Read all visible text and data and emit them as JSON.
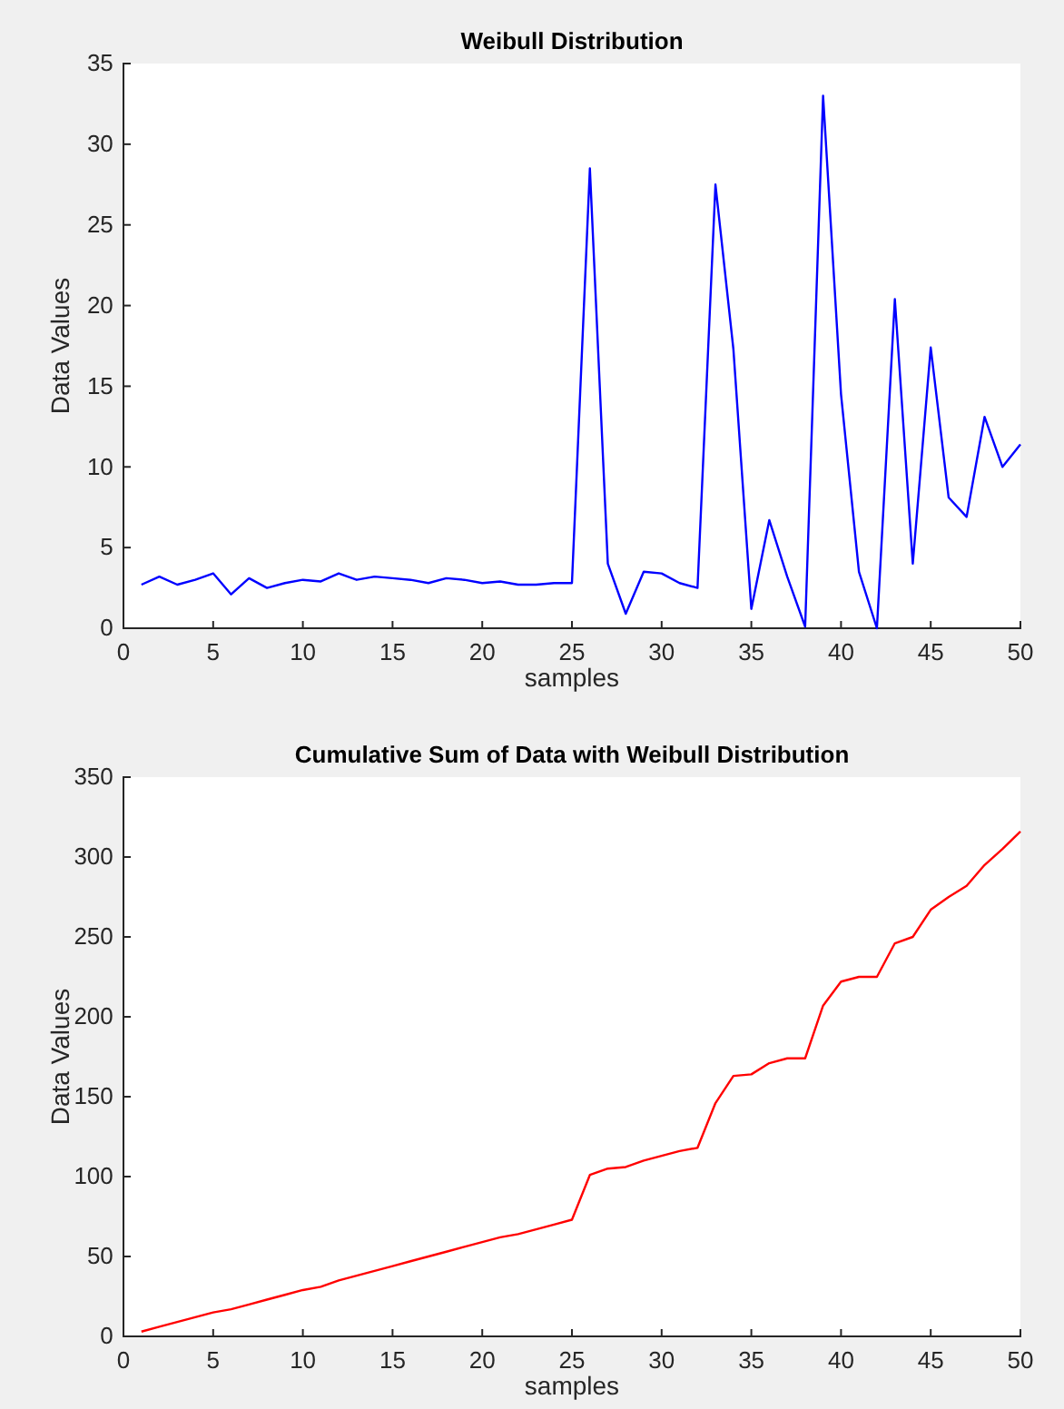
{
  "chart_data": [
    {
      "type": "line",
      "title": "Weibull Distribution",
      "xlabel": "samples",
      "ylabel": "Data Values",
      "x": [
        1,
        2,
        3,
        4,
        5,
        6,
        7,
        8,
        9,
        10,
        11,
        12,
        13,
        14,
        15,
        16,
        17,
        18,
        19,
        20,
        21,
        22,
        23,
        24,
        25,
        26,
        27,
        28,
        29,
        30,
        31,
        32,
        33,
        34,
        35,
        36,
        37,
        38,
        39,
        40,
        41,
        42,
        43,
        44,
        45,
        46,
        47,
        48,
        49,
        50
      ],
      "series": [
        {
          "color": "#0000ff",
          "values": [
            2.7,
            3.2,
            2.7,
            3.0,
            3.4,
            2.1,
            3.1,
            2.5,
            2.8,
            3.0,
            2.9,
            3.4,
            3.0,
            3.2,
            3.1,
            3.0,
            2.8,
            3.1,
            3.0,
            2.8,
            2.9,
            2.7,
            2.7,
            2.8,
            2.8,
            28.5,
            4.0,
            0.9,
            3.5,
            3.4,
            2.8,
            2.5,
            27.5,
            17.3,
            1.2,
            6.7,
            3.2,
            0.1,
            33.0,
            14.5,
            3.5,
            0,
            20.4,
            4.0,
            17.4,
            8.1,
            6.9,
            13.1,
            10.0,
            11.4
          ]
        }
      ],
      "xlim": [
        0,
        50
      ],
      "xticks": [
        0,
        5,
        10,
        15,
        20,
        25,
        30,
        35,
        40,
        45,
        50
      ],
      "ylim": [
        0,
        35
      ],
      "yticks": [
        0,
        5,
        10,
        15,
        20,
        25,
        30,
        35
      ],
      "grid": false
    },
    {
      "type": "line",
      "title": "Cumulative Sum of Data with Weibull Distribution",
      "xlabel": "samples",
      "ylabel": "Data Values",
      "x": [
        1,
        2,
        3,
        4,
        5,
        6,
        7,
        8,
        9,
        10,
        11,
        12,
        13,
        14,
        15,
        16,
        17,
        18,
        19,
        20,
        21,
        22,
        23,
        24,
        25,
        26,
        27,
        28,
        29,
        30,
        31,
        32,
        33,
        34,
        35,
        36,
        37,
        38,
        39,
        40,
        41,
        42,
        43,
        44,
        45,
        46,
        47,
        48,
        49,
        50
      ],
      "series": [
        {
          "color": "#ff0000",
          "values": [
            3,
            6,
            9,
            12,
            15,
            17,
            20,
            23,
            26,
            29,
            31,
            35,
            38,
            41,
            44,
            47,
            50,
            53,
            56,
            59,
            62,
            64,
            67,
            70,
            73,
            101,
            105,
            106,
            110,
            113,
            116,
            118,
            146,
            163,
            164,
            171,
            174,
            174,
            207,
            222,
            225,
            225,
            246,
            250,
            267,
            275,
            282,
            295,
            305,
            316
          ]
        }
      ],
      "xlim": [
        0,
        50
      ],
      "xticks": [
        0,
        5,
        10,
        15,
        20,
        25,
        30,
        35,
        40,
        45,
        50
      ],
      "ylim": [
        0,
        350
      ],
      "yticks": [
        0,
        50,
        100,
        150,
        200,
        250,
        300,
        350
      ],
      "grid": false
    }
  ]
}
